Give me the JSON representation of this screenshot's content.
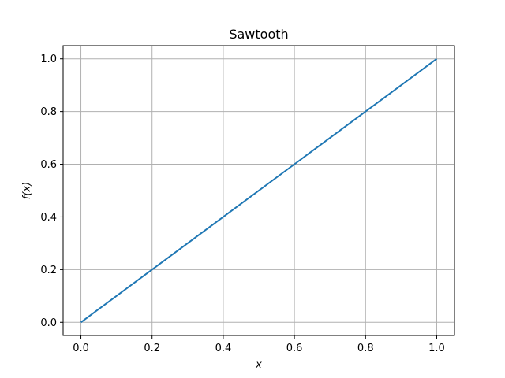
{
  "chart_data": {
    "type": "line",
    "title": "Sawtooth",
    "xlabel": "x",
    "ylabel": "f(x)",
    "xlim": [
      -0.05,
      1.05
    ],
    "ylim": [
      -0.05,
      1.05
    ],
    "x_ticks": [
      0.0,
      0.2,
      0.4,
      0.6,
      0.8,
      1.0
    ],
    "y_ticks": [
      0.0,
      0.2,
      0.4,
      0.6,
      0.8,
      1.0
    ],
    "x_tick_labels": [
      "0.0",
      "0.2",
      "0.4",
      "0.6",
      "0.8",
      "1.0"
    ],
    "y_tick_labels": [
      "0.0",
      "0.2",
      "0.4",
      "0.6",
      "0.8",
      "1.0"
    ],
    "grid": true,
    "series": [
      {
        "color": "#1f77b4",
        "x": [
          0.0,
          1.0
        ],
        "y": [
          0.0,
          1.0
        ]
      }
    ]
  },
  "colors": {
    "line": "#1f77b4",
    "grid": "#b0b0b0",
    "axes": "#000000"
  }
}
